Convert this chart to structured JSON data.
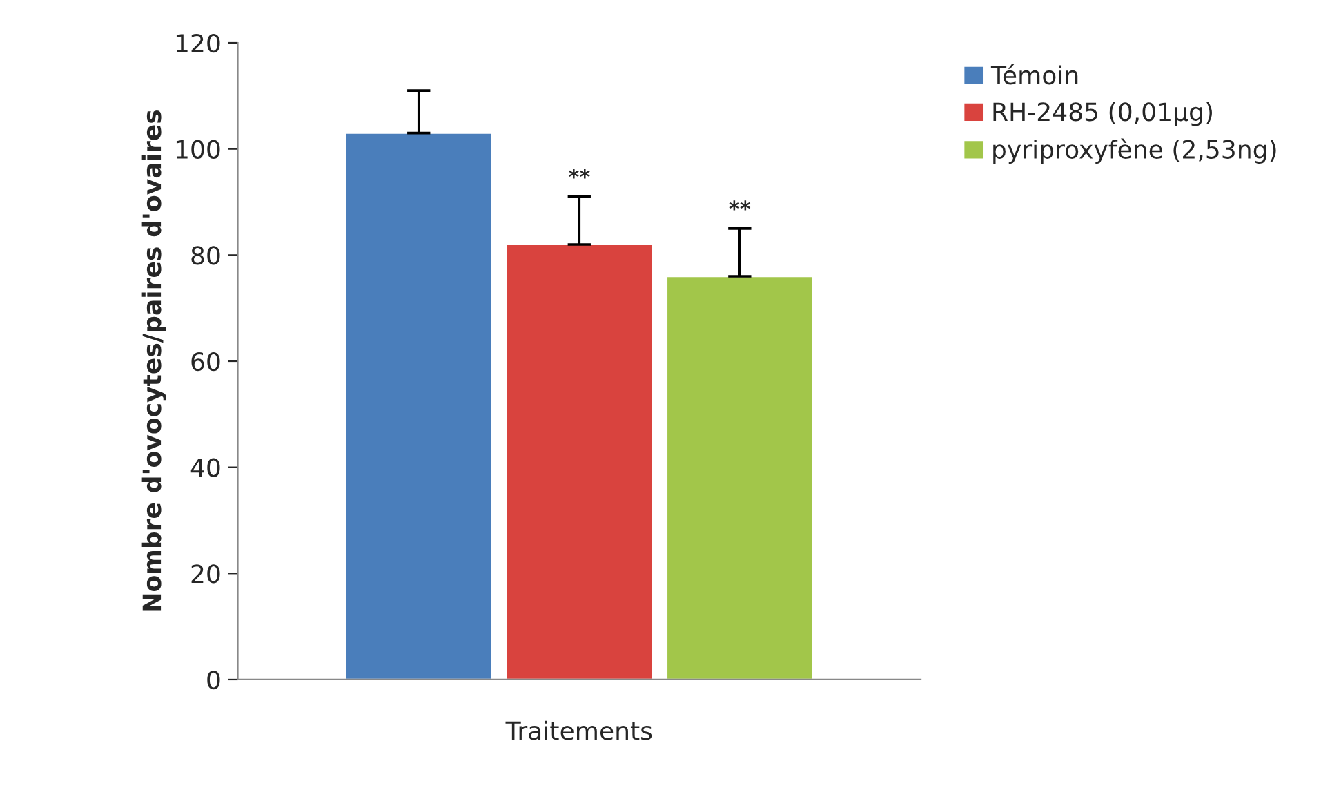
{
  "chart_data": {
    "type": "bar",
    "xlabel": "Traitements",
    "ylabel": "Nombre d'ovocytes/paires d'ovaires",
    "categories": [
      null
    ],
    "series": [
      {
        "name": "Témoin",
        "color": "#4a7ebb",
        "values": [
          103
        ],
        "errors": [
          [
            103,
            111
          ]
        ],
        "value_labels": [
          null
        ]
      },
      {
        "name": "RH-2485 (0,01µg)",
        "color": "#d9433e",
        "values": [
          82
        ],
        "errors": [
          [
            82,
            91
          ]
        ],
        "value_labels": [
          "**"
        ]
      },
      {
        "name": "pyriproxyfène (2,53ng)",
        "color": "#a2c64a",
        "values": [
          76
        ],
        "errors": [
          [
            76,
            85
          ]
        ],
        "value_labels": [
          "**"
        ]
      }
    ],
    "ylim": [
      0,
      120
    ],
    "yticks": [
      0,
      20,
      40,
      60,
      80,
      100,
      120
    ],
    "grid": false,
    "legend": "right"
  }
}
